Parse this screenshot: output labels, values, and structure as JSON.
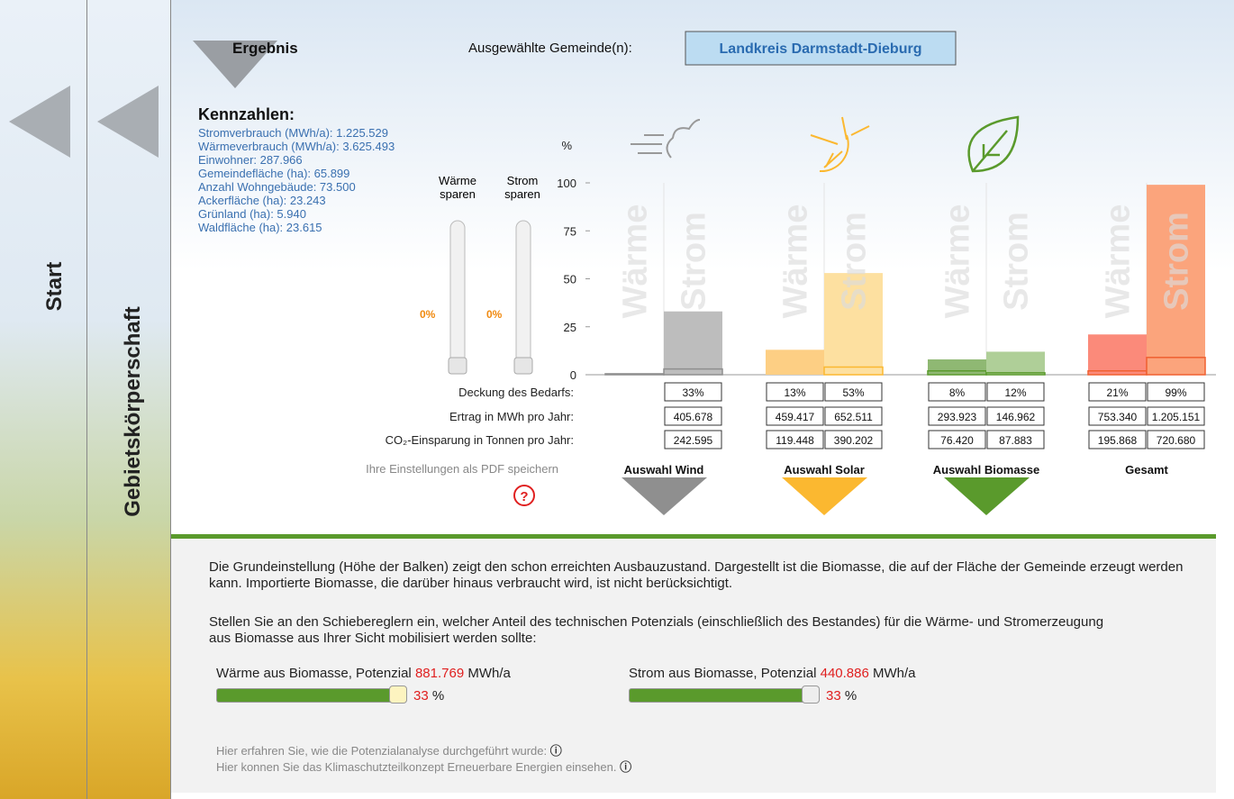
{
  "sidebar": {
    "start": "Start",
    "region": "Gebietskörperschaft"
  },
  "header": {
    "title": "Ergebnis",
    "selected_label": "Ausgewählte Gemeinde(n):",
    "selected": "Landkreis Darmstadt-Dieburg"
  },
  "kennzahlen": {
    "title": "Kennzahlen:",
    "items": [
      "Stromverbrauch (MWh/a): 1.225.529",
      "Wärmeverbrauch (MWh/a): 3.625.493",
      "Einwohner: 287.966",
      "Gemeindefläche (ha): 65.899",
      "Anzahl Wohngebäude: 73.500",
      "Ackerfläche (ha): 23.243",
      "Grünland (ha): 5.940",
      "Waldfläche (ha): 23.615"
    ]
  },
  "savings": {
    "waerme": "Wärme sparen",
    "strom": "Strom sparen",
    "waerme_value": "0%",
    "strom_value": "0%"
  },
  "chart_data": {
    "type": "bar",
    "unit": "%",
    "ylim": [
      0,
      100
    ],
    "yticks": [
      0,
      25,
      50,
      75,
      100
    ],
    "row_labels": [
      "Deckung des Bedarfs:",
      "Ertrag in MWh pro Jahr:",
      "CO₂-Einsparung in Tonnen pro Jahr:"
    ],
    "groups": [
      {
        "name": "Auswahl Wind",
        "color": "#8f8f8f",
        "series": [
          {
            "name": "Wärme",
            "color": "#bdbdbd",
            "value": 0.5,
            "existing": 0.5,
            "value_label": null,
            "ertrag": null,
            "co2": null
          },
          {
            "name": "Strom",
            "color": "#bdbdbd",
            "value": 33,
            "existing": 3,
            "value_label": "33%",
            "ertrag": "405.678",
            "co2": "242.595"
          }
        ]
      },
      {
        "name": "Auswahl Solar",
        "color": "#fbb830",
        "series": [
          {
            "name": "Wärme",
            "color": "#fdcf84",
            "value": 13,
            "existing": 0,
            "value_label": "13%",
            "ertrag": "459.417",
            "co2": "119.448"
          },
          {
            "name": "Strom",
            "color": "#fde0a0",
            "value": 53,
            "existing": 4,
            "value_label": "53%",
            "ertrag": "652.511",
            "co2": "390.202"
          }
        ]
      },
      {
        "name": "Auswahl Biomasse",
        "color": "#5a9a2c",
        "series": [
          {
            "name": "Wärme",
            "color": "#8fb873",
            "value": 8,
            "existing": 2,
            "value_label": "8%",
            "ertrag": "293.923",
            "co2": "76.420"
          },
          {
            "name": "Strom",
            "color": "#afcf98",
            "value": 12,
            "existing": 1,
            "value_label": "12%",
            "ertrag": "146.962",
            "co2": "87.883"
          }
        ]
      },
      {
        "name": "Gesamt",
        "color": null,
        "series": [
          {
            "name": "Wärme",
            "color": "#fb8a7a",
            "value": 21,
            "existing": 2,
            "value_label": "21%",
            "ertrag": "753.340",
            "co2": "195.868"
          },
          {
            "name": "Strom",
            "color": "#fba47c",
            "value": 99,
            "existing": 9,
            "value_label": "99%",
            "ertrag": "1.205.151",
            "co2": "720.680"
          }
        ]
      }
    ]
  },
  "pdf_link": "Ihre Einstellungen als PDF speichern",
  "help": "?",
  "panel": {
    "paragraph1": "Die Grundeinstellung (Höhe der Balken) zeigt den schon erreichten Ausbauzustand. Dargestellt ist die Biomasse, die auf der Fläche der Gemeinde erzeugt werden kann. Importierte Biomasse, die darüber hinaus verbraucht wird, ist nicht berücksichtigt.",
    "paragraph2": "Stellen Sie an den Schiebereglern ein, welcher Anteil des technischen Potenzials (einschließlich des Bestandes) für die Wärme- und Stromerzeugung aus Biomasse aus Ihrer Sicht mobilisiert werden sollte:",
    "sliders": [
      {
        "label": "Wärme aus Biomasse, Potenzial",
        "potential": "881.769",
        "unit": "MWh/a",
        "value": "33",
        "percent": "%"
      },
      {
        "label": "Strom aus Biomasse, Potenzial",
        "potential": "440.886",
        "unit": "MWh/a",
        "value": "33",
        "percent": "%"
      }
    ],
    "info1": "Hier erfahren Sie, wie die Potenzialanalyse durchgeführt wurde:",
    "info2": "Hier konnen Sie das Klimaschutzteilkonzept Erneuerbare Energien einsehen."
  }
}
